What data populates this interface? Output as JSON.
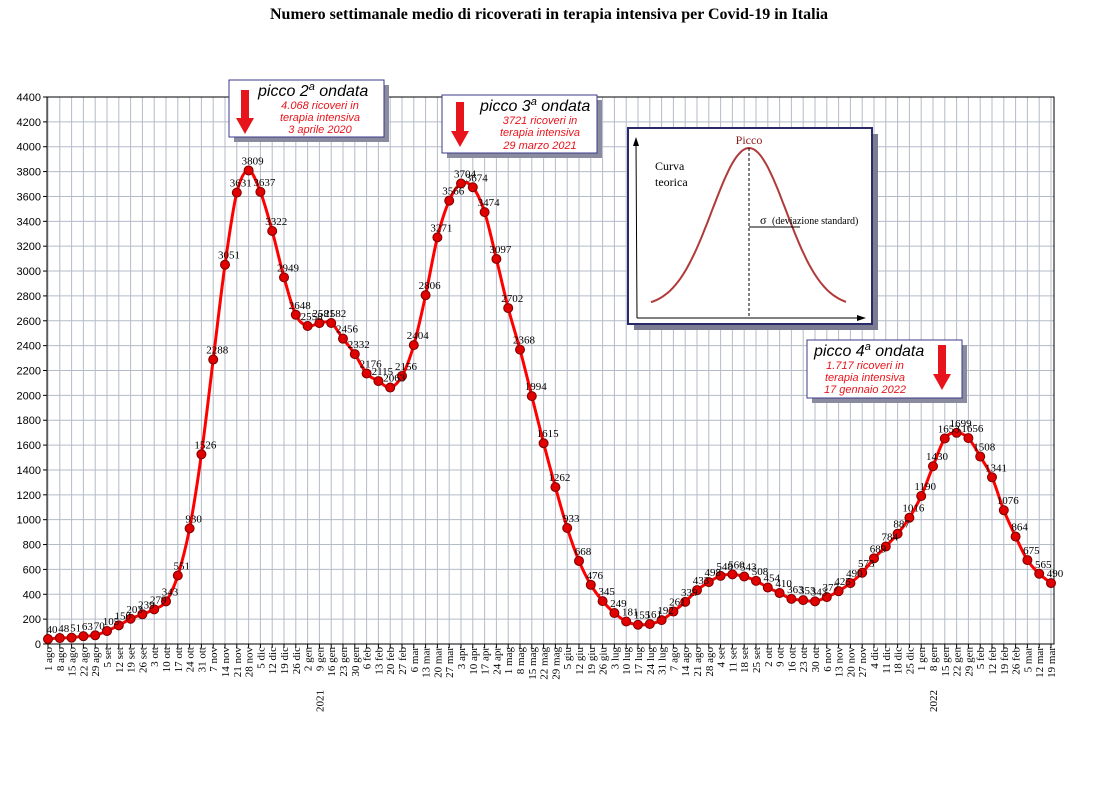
{
  "chart_data": {
    "type": "line",
    "title": "Numero settimanale medio di ricoverati in terapia intensiva per Covid-19 in Italia",
    "xlabel": "",
    "ylabel": "",
    "ylim": [
      0,
      4400
    ],
    "yticks": [
      0,
      200,
      400,
      600,
      800,
      1000,
      1200,
      1400,
      1600,
      1800,
      2000,
      2200,
      2400,
      2600,
      2800,
      3000,
      3200,
      3400,
      3600,
      3800,
      4000,
      4200,
      4400
    ],
    "grid": true,
    "colors": {
      "line": "#ff0000",
      "marker_fill": "#e00000",
      "marker_edge": "#7a0000",
      "grid": "#b4bcc8",
      "box_text": "#e8141b",
      "arrow": "#e8141b"
    },
    "categories": [
      "1 ago",
      "8 ago",
      "15 ago",
      "22 ago",
      "29 ago",
      "5 set",
      "12 set",
      "19 set",
      "26 set",
      "3 ott",
      "10 ott",
      "17 ott",
      "24 ott",
      "31 ott",
      "7 nov",
      "14 nov",
      "21 nov",
      "28 nov",
      "5 dic",
      "12 dic",
      "19 dic",
      "26 dic",
      "2 gen",
      "9 gen",
      "16 gen",
      "23 gen",
      "30 gen",
      "6 feb",
      "13 feb",
      "20 feb",
      "27 feb",
      "6 mar",
      "13 mar",
      "20 mar",
      "27 mar",
      "3 apr",
      "10 apr",
      "17 apr",
      "24 apr",
      "1 mag",
      "8 mag",
      "15 mag",
      "22 mag",
      "29 mag",
      "5 giu",
      "12 giu",
      "19 giu",
      "26 giu",
      "3 lug",
      "10 lug",
      "17 lug",
      "24 lug",
      "31 lug",
      "7 ago",
      "14 ago",
      "21 ago",
      "28 ago",
      "4 set",
      "11 set",
      "18 set",
      "25 set",
      "2 ott",
      "9 ott",
      "16 ott",
      "23 ott",
      "30 ott",
      "6 nov",
      "13 nov",
      "20 nov",
      "27 nov",
      "4 dic",
      "11 dic",
      "18 dic",
      "25 dic",
      "1 gen",
      "8 gen",
      "15 gen",
      "22 gen",
      "29 gen",
      "5 feb",
      "12 feb",
      "19 feb",
      "26 feb",
      "5 mar",
      "12 mar",
      "19 mar"
    ],
    "x_tick_labels": [
      "1 ago",
      "8 ago",
      "15 ago",
      "22 ago",
      "29 ago",
      "5 set",
      "12 set",
      "19 set",
      "26 set",
      "3 ott",
      "10 ott",
      "17 ott",
      "24 ott",
      "31 ott",
      "7 nov",
      "14 nov",
      "21 nov",
      "28 nov",
      "5 dic",
      "12 dic",
      "19 dic",
      "26 dic",
      "2 gen",
      "9 gen",
      "16 gen",
      "23 gen",
      "30 gen",
      "6 feb",
      "13 feb",
      "20 feb",
      "27 feb",
      "6 mar",
      "13 mar",
      "20 mar",
      "27 mar",
      "3 apr",
      "10 apr",
      "17 apr",
      "24 apr",
      "1 mag",
      "8 mag",
      "15 mag",
      "22 mag",
      "29 mag",
      "5 giu",
      "12 giu",
      "19 giu",
      "26 giu",
      "3 lug",
      "10 lug",
      "17 lug",
      "24 lug",
      "31 lug",
      "7 ago",
      "14 ago",
      "21 ago",
      "28 ago",
      "4 set",
      "11 set",
      "18 set",
      "25 set",
      "2 ott",
      "9 ott",
      "16 ott",
      "23 ott",
      "30 ott",
      "6 nov",
      "13 nov",
      "20 nov",
      "27 nov",
      "4 dic",
      "11 dic",
      "18 dic",
      "25 dic",
      "1 gen",
      "8 gen",
      "15 gen",
      "22 gen",
      "29 gen",
      "5 feb",
      "12 feb",
      "19 feb",
      "26 feb",
      "5 mar",
      "12 mar",
      "19 mar"
    ],
    "year_markers": [
      {
        "index": 22,
        "label": "2021"
      },
      {
        "index": 74,
        "label": "2022"
      }
    ],
    "series": [
      {
        "values": [
          40,
          48,
          51,
          63,
          70,
          105,
          150,
          203,
          239,
          279,
          343,
          551,
          930,
          1526,
          2288,
          3051,
          3631,
          3809,
          3637,
          3322,
          2949,
          2648,
          2558,
          2581,
          2582,
          2456,
          2332,
          2176,
          2115,
          2063,
          2156,
          2404,
          2806,
          3271,
          3566,
          3704,
          3674,
          3474,
          3097,
          2702,
          2368,
          1994,
          1615,
          1262,
          933,
          668,
          476,
          345,
          249,
          181,
          155,
          161,
          192,
          261,
          339,
          433,
          498,
          548,
          560,
          543,
          508,
          454,
          410,
          363,
          353,
          343,
          377,
          425,
          490,
          573,
          689,
          784,
          887,
          1016,
          1190,
          1430,
          1653,
          1699,
          1656,
          1508,
          1341,
          1076,
          864,
          675,
          565,
          490
        ],
        "labels": [
          "40",
          "48",
          "51",
          "63",
          "70",
          "105",
          "150",
          "203",
          "239",
          "279",
          "343",
          "551",
          "930",
          "1526",
          "2288",
          "3051",
          "3631",
          "3809",
          "3637",
          "3322",
          "2949",
          "2648",
          "2558",
          "2581",
          "2582",
          "2456",
          "2332",
          "2176",
          "2115",
          "2063",
          "2156",
          "2404",
          "2806",
          "3271",
          "3566",
          "3704",
          "3674",
          "3474",
          "3097",
          "2702",
          "2368",
          "1994",
          "1615",
          "1262",
          "933",
          "668",
          "476",
          "345",
          "249",
          "181",
          "155",
          "161",
          "192",
          "261",
          "339",
          "433",
          "498",
          "548",
          "560",
          "543",
          "508",
          "454",
          "410",
          "363",
          "353",
          "343",
          "377",
          "425",
          "490",
          "573",
          "689",
          "784",
          "887",
          "1016",
          "1190",
          "1430",
          "1653",
          "1699",
          "1656",
          "1508",
          "1341",
          "1076",
          "864",
          "675",
          "565",
          "490"
        ]
      }
    ],
    "annotations": [
      {
        "title_pre": "picco 2",
        "title_sup": "a",
        "title_post": " ondata",
        "lines": [
          "4.068 ricoveri in",
          "terapia intensiva",
          "3 aprile 2020"
        ]
      },
      {
        "title_pre": "picco 3",
        "title_sup": "a",
        "title_post": " ondata",
        "lines": [
          "3721 ricoveri in",
          "terapia intensiva",
          "29 marzo 2021"
        ]
      },
      {
        "title_pre": "picco 4",
        "title_sup": "a",
        "title_post": " ondata",
        "lines": [
          "1.717 ricoveri in",
          "terapia intensiva",
          "17 gennaio 2022"
        ]
      }
    ],
    "inset": {
      "peak_label": "Picco",
      "curve_label_1": "Curva",
      "curve_label_2": "teorica",
      "sigma": "σ",
      "sigma_note": "(deviazione standard)"
    }
  }
}
